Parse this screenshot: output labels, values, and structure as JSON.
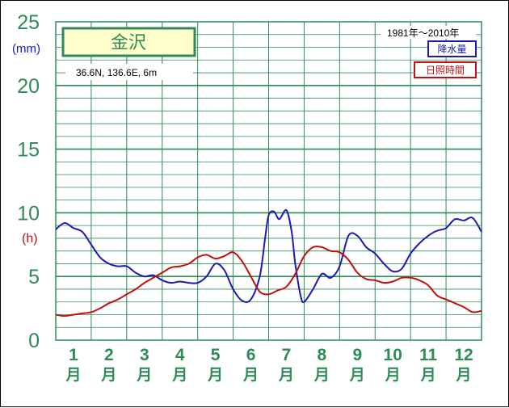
{
  "chart_data": {
    "type": "line",
    "station": "金沢",
    "location": "36.6N,  136.6E,  6m",
    "period": "1981年〜2010年",
    "y_unit_precip": "(mm)",
    "y_unit_sun": "(h)",
    "ylim": [
      0,
      25
    ],
    "y_ticks": [
      "0",
      "5",
      "10",
      "15",
      "20",
      "25"
    ],
    "months": [
      "1",
      "2",
      "3",
      "4",
      "5",
      "6",
      "7",
      "8",
      "9",
      "10",
      "11",
      "12"
    ],
    "month_suffix": "月",
    "grid": true,
    "legend_position": "top-right",
    "series": [
      {
        "name": "降水量",
        "color": "#1a1ab4",
        "x": [
          0.0,
          0.25,
          0.5,
          0.75,
          1.0,
          1.25,
          1.5,
          1.75,
          2.0,
          2.25,
          2.5,
          2.75,
          3.0,
          3.25,
          3.5,
          3.75,
          4.0,
          4.25,
          4.5,
          4.75,
          5.0,
          5.25,
          5.5,
          5.75,
          5.9,
          6.0,
          6.15,
          6.3,
          6.5,
          6.65,
          6.75,
          6.9,
          7.0,
          7.25,
          7.5,
          7.75,
          8.0,
          8.25,
          8.5,
          8.75,
          9.0,
          9.25,
          9.5,
          9.75,
          10.0,
          10.25,
          10.5,
          10.75,
          11.0,
          11.25,
          11.5,
          11.75,
          12.0
        ],
        "y": [
          8.7,
          9.2,
          8.8,
          8.5,
          7.5,
          6.5,
          6.0,
          5.8,
          5.8,
          5.3,
          5.0,
          5.1,
          4.7,
          4.5,
          4.6,
          4.5,
          4.5,
          5.0,
          6.0,
          5.5,
          4.0,
          3.1,
          3.2,
          5.0,
          8.0,
          9.8,
          10.1,
          9.5,
          10.2,
          8.5,
          6.0,
          3.5,
          3.0,
          4.0,
          5.2,
          4.9,
          5.8,
          8.2,
          8.2,
          7.3,
          6.8,
          6.0,
          5.4,
          5.6,
          6.8,
          7.6,
          8.2,
          8.6,
          8.8,
          9.5,
          9.4,
          9.6,
          8.5
        ]
      },
      {
        "name": "日照時間",
        "color": "#c01010",
        "x": [
          0.0,
          0.25,
          0.5,
          0.75,
          1.0,
          1.25,
          1.5,
          1.75,
          2.0,
          2.25,
          2.5,
          2.75,
          3.0,
          3.25,
          3.5,
          3.75,
          4.0,
          4.25,
          4.5,
          4.75,
          5.0,
          5.25,
          5.5,
          5.75,
          6.0,
          6.25,
          6.5,
          6.75,
          7.0,
          7.25,
          7.5,
          7.75,
          8.0,
          8.25,
          8.5,
          8.75,
          9.0,
          9.25,
          9.5,
          9.75,
          10.0,
          10.25,
          10.5,
          10.75,
          11.0,
          11.25,
          11.5,
          11.75,
          12.0
        ],
        "y": [
          2.0,
          1.9,
          2.0,
          2.1,
          2.2,
          2.5,
          2.9,
          3.2,
          3.6,
          4.0,
          4.5,
          4.9,
          5.3,
          5.7,
          5.8,
          6.0,
          6.5,
          6.7,
          6.4,
          6.6,
          6.9,
          6.2,
          5.0,
          3.8,
          3.6,
          3.9,
          4.2,
          5.2,
          6.6,
          7.3,
          7.3,
          7.0,
          6.9,
          6.3,
          5.3,
          4.8,
          4.7,
          4.5,
          4.6,
          4.9,
          4.9,
          4.7,
          4.3,
          3.5,
          3.2,
          2.9,
          2.6,
          2.2,
          2.3
        ]
      }
    ]
  }
}
